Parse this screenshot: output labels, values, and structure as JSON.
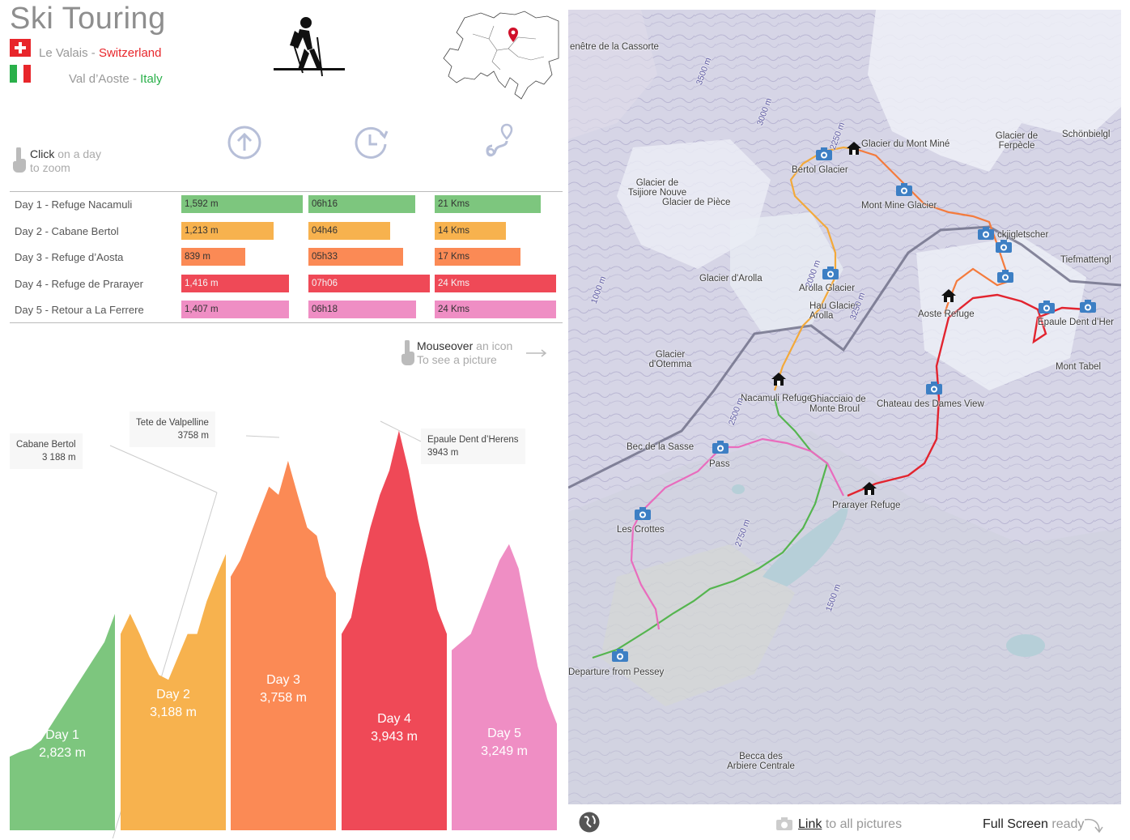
{
  "header": {
    "title": "Ski Touring",
    "region_1": "Le Valais",
    "country_1": "Switzerland",
    "region_2": "Val d’Aoste",
    "country_2": "Italy",
    "separator": "-"
  },
  "hints": {
    "click_strong": "Click",
    "click_rest": "on a day",
    "click_line2": "to zoom",
    "mouse_strong": "Mouseover",
    "mouse_rest": "an icon",
    "mouse_line2": "To see a picture"
  },
  "metric_icons": [
    "elevation-up-icon",
    "clock-icon",
    "distance-pin-icon"
  ],
  "colors": {
    "day1": "#7dc67e",
    "day2": "#f7b24e",
    "day3": "#fb8a55",
    "day4": "#ef4957",
    "day5": "#ef8ec4"
  },
  "days": [
    {
      "label": "Day 1 - Refuge Nacamuli",
      "elevation": "1,592 m",
      "time": "06h16",
      "distance": "21 Kms",
      "elev_gain_m": 1592,
      "minutes": 376,
      "kms": 21
    },
    {
      "label": "Day 2 - Cabane Bertol",
      "elevation": "1,213 m",
      "time": "04h46",
      "distance": "14 Kms",
      "elev_gain_m": 1213,
      "minutes": 286,
      "kms": 14
    },
    {
      "label": "Day 3 - Refuge d’Aosta",
      "elevation": "839 m",
      "time": "05h33",
      "distance": "17 Kms",
      "elev_gain_m": 839,
      "minutes": 333,
      "kms": 17
    },
    {
      "label": "Day 4 - Refuge de Prarayer",
      "elevation": "1,416 m",
      "time": "07h06",
      "distance": "24 Kms",
      "elev_gain_m": 1416,
      "minutes": 426,
      "kms": 24
    },
    {
      "label": "Day 5 - Retour a La Ferrere",
      "elevation": "1,407 m",
      "time": "06h18",
      "distance": "24 Kms",
      "elev_gain_m": 1407,
      "minutes": 378,
      "kms": 24
    }
  ],
  "profile": {
    "callouts": [
      {
        "name": "Cabane Bertol",
        "alt": "3 188 m"
      },
      {
        "name": "Tete de Valpelline",
        "alt": "3758 m"
      },
      {
        "name": "Epaule Dent d’Herens",
        "alt": "3943 m"
      }
    ],
    "days": [
      {
        "name": "Day 1",
        "max": "2,823 m",
        "max_m": 2823
      },
      {
        "name": "Day 2",
        "max": "3,188 m",
        "max_m": 3188
      },
      {
        "name": "Day 3",
        "max": "3,758 m",
        "max_m": 3758
      },
      {
        "name": "Day 4",
        "max": "3,943 m",
        "max_m": 3943
      },
      {
        "name": "Day 5",
        "max": "3,249 m",
        "max_m": 3249
      }
    ]
  },
  "map": {
    "labels": [
      "Bertol Glacier",
      "Glacier du Mont Miné",
      "Mont Mine Glacier",
      "Glacier de Tsijiore Nouve",
      "Glacier de Pièce",
      "Glacier de Ferpècle",
      "Schönbielgl",
      "ckjigletscher",
      "Tiefmattengl",
      "Glacier d'Arolla",
      "Arolla Glacier",
      "Hau Glacier Arolla",
      "Aoste Refuge",
      "Epaule Dent d’Her",
      "Glacier d'Otemma",
      "Nacamuli Refuge",
      "Chateau des Dames View",
      "Ghiacciaio de Monte Broul",
      "Bec de la Sasse",
      "Pass",
      "Prarayer Refuge",
      "Les Crottes",
      "Departure from Pessey",
      "Becca des Arbiere Centrale",
      "enêtre de la Cassorte",
      "Mont Tabel"
    ],
    "contours": [
      "3500 m",
      "3000 m",
      "2250 m",
      "2000 m",
      "1000 m",
      "3250 m",
      "2500 m",
      "2750 m",
      "1500 m"
    ]
  },
  "footer": {
    "link": "Link",
    "link_rest": "to all pictures",
    "fullscreen": "Full Screen",
    "fullscreen_rest": "ready"
  }
}
